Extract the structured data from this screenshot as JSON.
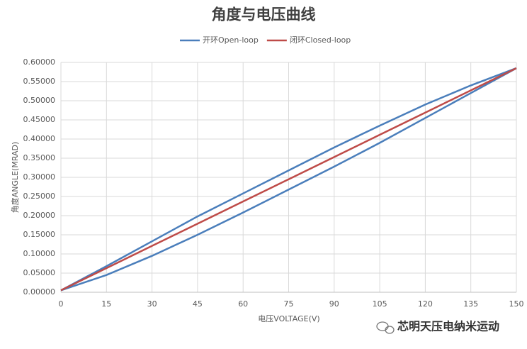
{
  "chart_data": {
    "type": "line",
    "title": "角度与电压曲线",
    "x_label": "电压VOLTAGE(V)",
    "y_label": "角度ANGLE(MRAD)",
    "xlim": [
      0,
      150
    ],
    "xticks": [
      0,
      15,
      30,
      45,
      60,
      75,
      90,
      105,
      120,
      135,
      150
    ],
    "ylim": [
      0,
      0.6
    ],
    "yticks": [
      {
        "value": 0,
        "label": "0.00000"
      },
      {
        "value": 0.05,
        "label": "0.05000"
      },
      {
        "value": 0.1,
        "label": "0.10000"
      },
      {
        "value": 0.15,
        "label": "0.15000"
      },
      {
        "value": 0.2,
        "label": "0.20000"
      },
      {
        "value": 0.25,
        "label": "0.25000"
      },
      {
        "value": 0.3,
        "label": "0.30000"
      },
      {
        "value": 0.35,
        "label": "0.35000"
      },
      {
        "value": 0.4,
        "label": "0.40000"
      },
      {
        "value": 0.45,
        "label": "0.45000"
      },
      {
        "value": 0.5,
        "label": "0.50000"
      },
      {
        "value": 0.55,
        "label": "0.55000"
      },
      {
        "value": 0.6,
        "label": "0.60000"
      }
    ],
    "grid": true,
    "series": [
      {
        "name": "开环Open-loop",
        "color": "#4a7ebb",
        "x": [
          0,
          15,
          30,
          45,
          60,
          75,
          90,
          105,
          120,
          135,
          150,
          135,
          120,
          105,
          90,
          75,
          60,
          45,
          30,
          15,
          0
        ],
        "values": [
          0.005,
          0.045,
          0.095,
          0.15,
          0.208,
          0.268,
          0.328,
          0.39,
          0.455,
          0.52,
          0.585,
          0.54,
          0.49,
          0.435,
          0.378,
          0.318,
          0.258,
          0.198,
          0.133,
          0.068,
          0.005
        ]
      },
      {
        "name": "闭环Closed-loop",
        "color": "#be4b48",
        "x": [
          0,
          15,
          30,
          45,
          60,
          75,
          90,
          105,
          120,
          135,
          150
        ],
        "values": [
          0.005,
          0.063,
          0.121,
          0.179,
          0.237,
          0.295,
          0.353,
          0.411,
          0.469,
          0.527,
          0.585
        ]
      }
    ],
    "watermark": "芯明天压电纳米运动"
  }
}
